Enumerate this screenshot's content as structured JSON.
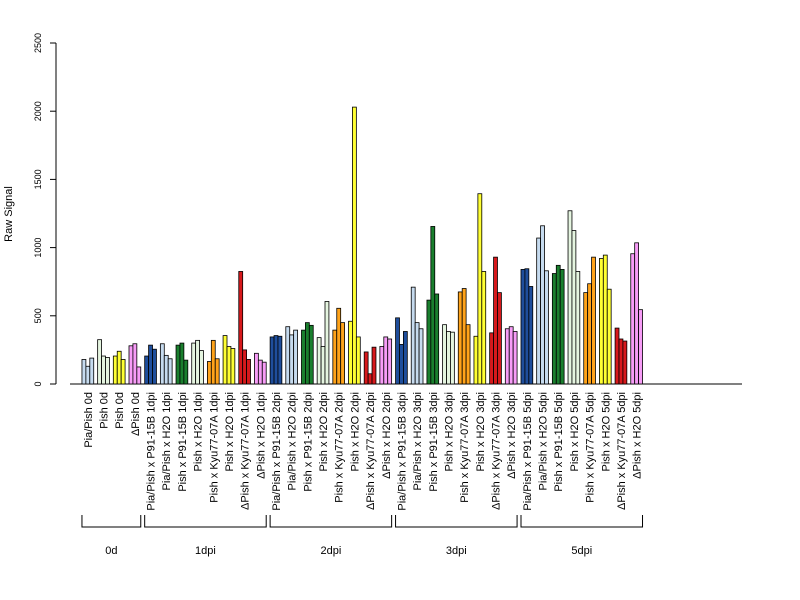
{
  "chart_data": {
    "type": "bar",
    "ylabel": "Raw Signal",
    "ylim": [
      0,
      2500
    ],
    "yticks": [
      0,
      500,
      1000,
      1500,
      2000,
      2500
    ],
    "grid": false,
    "bars_per_category": 3,
    "categories": [
      {
        "label": "Pia/Pish 0d",
        "color": "#c6dbef",
        "values": [
          180,
          130,
          190
        ]
      },
      {
        "label": "Pish 0d",
        "color": "#e5f5e0",
        "values": [
          325,
          205,
          195
        ]
      },
      {
        "label": "Pish 0d",
        "color": "#ffff33",
        "values": [
          205,
          240,
          180
        ]
      },
      {
        "label": "ΔPish 0d",
        "color": "#f79cf7",
        "values": [
          280,
          295,
          125
        ]
      },
      {
        "label": "Pia/Pish x P91-15B 1dpi",
        "color": "#1f4e9c",
        "values": [
          205,
          285,
          255
        ]
      },
      {
        "label": "Pia/Pish x H2O 1dpi",
        "color": "#c6dbef",
        "values": [
          295,
          210,
          185
        ]
      },
      {
        "label": "Pish x P91-15B 1dpi",
        "color": "#1a7f2e",
        "values": [
          285,
          300,
          175
        ]
      },
      {
        "label": "Pish x H2O 1dpi",
        "color": "#e5f5e0",
        "values": [
          300,
          320,
          245
        ]
      },
      {
        "label": "Pish x Kyu77-07A 1dpi",
        "color": "#ffa31a",
        "values": [
          165,
          320,
          185
        ]
      },
      {
        "label": "Pish x H2O 1dpi",
        "color": "#ffff33",
        "values": [
          355,
          275,
          260
        ]
      },
      {
        "label": "ΔPish x Kyu77-07A 1dpi",
        "color": "#d7191c",
        "values": [
          825,
          250,
          180
        ]
      },
      {
        "label": "ΔPish x H2O 1dpi",
        "color": "#f79cf7",
        "values": [
          225,
          175,
          160
        ]
      },
      {
        "label": "Pia/Pish x P91-15B 2dpi",
        "color": "#1f4e9c",
        "values": [
          345,
          355,
          350
        ]
      },
      {
        "label": "Pia/Pish x H2O 2dpi",
        "color": "#c6dbef",
        "values": [
          420,
          360,
          395
        ]
      },
      {
        "label": "Pish x P91-15B 2dpi",
        "color": "#1a7f2e",
        "values": [
          395,
          450,
          430
        ]
      },
      {
        "label": "Pish x H2O 2dpi",
        "color": "#e5f5e0",
        "values": [
          340,
          275,
          605
        ]
      },
      {
        "label": "Pish x Kyu77-07A 2dpi",
        "color": "#ffa31a",
        "values": [
          395,
          555,
          450
        ]
      },
      {
        "label": "Pish x H2O 2dpi",
        "color": "#ffff33",
        "values": [
          460,
          2030,
          345
        ]
      },
      {
        "label": "ΔPish x Kyu77-07A 2dpi",
        "color": "#d7191c",
        "values": [
          235,
          75,
          270
        ]
      },
      {
        "label": "ΔPish x H2O 2dpi",
        "color": "#f79cf7",
        "values": [
          275,
          345,
          330
        ]
      },
      {
        "label": "Pia/Pish x P91-15B 3dpi",
        "color": "#1f4e9c",
        "values": [
          485,
          290,
          385
        ]
      },
      {
        "label": "Pia/Pish x H2O 3dpi",
        "color": "#c6dbef",
        "values": [
          710,
          450,
          405
        ]
      },
      {
        "label": "Pish x P91-15B 3dpi",
        "color": "#1a7f2e",
        "values": [
          615,
          1155,
          660
        ]
      },
      {
        "label": "Pish x H2O 3dpi",
        "color": "#e5f5e0",
        "values": [
          435,
          385,
          380
        ]
      },
      {
        "label": "Pish x Kyu77-07A 3dpi",
        "color": "#ffa31a",
        "values": [
          675,
          700,
          435
        ]
      },
      {
        "label": "Pish x H2O 3dpi",
        "color": "#ffff33",
        "values": [
          350,
          1395,
          825
        ]
      },
      {
        "label": "ΔPish x Kyu77-07A 3dpi",
        "color": "#d7191c",
        "values": [
          375,
          930,
          670
        ]
      },
      {
        "label": "ΔPish x H2O 3dpi",
        "color": "#f79cf7",
        "values": [
          405,
          420,
          385
        ]
      },
      {
        "label": "Pia/Pish x P91-15B 5dpi",
        "color": "#1f4e9c",
        "values": [
          840,
          845,
          715
        ]
      },
      {
        "label": "Pia/Pish x H2O 5dpi",
        "color": "#c6dbef",
        "values": [
          1070,
          1160,
          830
        ]
      },
      {
        "label": "Pish x P91-15B 5dpi",
        "color": "#1a7f2e",
        "values": [
          810,
          870,
          840
        ]
      },
      {
        "label": "Pish x H2O 5dpi",
        "color": "#e5f5e0",
        "values": [
          1270,
          1125,
          825
        ]
      },
      {
        "label": "Pish x Kyu77-07A 5dpi",
        "color": "#ffa31a",
        "values": [
          670,
          735,
          930
        ]
      },
      {
        "label": "Pish x H2O 5dpi",
        "color": "#ffff33",
        "values": [
          920,
          945,
          695
        ]
      },
      {
        "label": "ΔPish x Kyu77-07A 5dpi",
        "color": "#d7191c",
        "values": [
          410,
          330,
          315
        ]
      },
      {
        "label": "ΔPish x H2O 5dpi",
        "color": "#f79cf7",
        "values": [
          955,
          1035,
          545
        ]
      }
    ],
    "groups": [
      {
        "label": "0d",
        "start": 0,
        "end": 3
      },
      {
        "label": "1dpi",
        "start": 4,
        "end": 11
      },
      {
        "label": "2dpi",
        "start": 12,
        "end": 19
      },
      {
        "label": "3dpi",
        "start": 20,
        "end": 27
      },
      {
        "label": "5dpi",
        "start": 28,
        "end": 35
      }
    ]
  }
}
